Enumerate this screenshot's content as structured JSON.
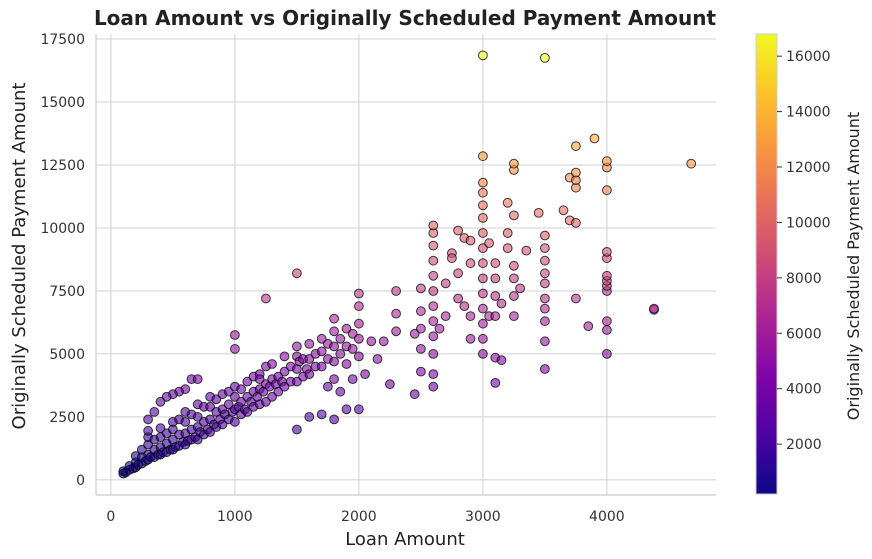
{
  "chart_data": {
    "type": "scatter",
    "title": "Loan Amount vs Originally Scheduled Payment Amount",
    "xlabel": "Loan Amount",
    "ylabel": "Originally Scheduled Payment Amount",
    "xlim": [
      -120,
      4880
    ],
    "ylim": [
      -600,
      17700
    ],
    "xticks": [
      0,
      1000,
      2000,
      3000,
      4000
    ],
    "yticks": [
      0,
      2500,
      5000,
      7500,
      10000,
      12500,
      15000,
      17500
    ],
    "grid": true,
    "colormap": "plasma",
    "marker_edge_color": "#000000",
    "marker_alpha": 0.6,
    "colorbar": {
      "label": "Originally Scheduled Payment Amount",
      "range": [
        200,
        16800
      ],
      "ticks": [
        2000,
        4000,
        6000,
        8000,
        10000,
        12000,
        14000,
        16000
      ]
    },
    "points": [
      [
        100,
        250
      ],
      [
        100,
        350
      ],
      [
        120,
        300
      ],
      [
        150,
        400
      ],
      [
        150,
        550
      ],
      [
        180,
        450
      ],
      [
        200,
        500
      ],
      [
        200,
        700
      ],
      [
        200,
        950
      ],
      [
        220,
        600
      ],
      [
        250,
        650
      ],
      [
        250,
        900
      ],
      [
        250,
        1200
      ],
      [
        280,
        750
      ],
      [
        300,
        800
      ],
      [
        300,
        1000
      ],
      [
        300,
        1400
      ],
      [
        300,
        1700
      ],
      [
        300,
        1950
      ],
      [
        320,
        900
      ],
      [
        350,
        900
      ],
      [
        350,
        1200
      ],
      [
        350,
        1600
      ],
      [
        380,
        1000
      ],
      [
        400,
        1000
      ],
      [
        400,
        1300
      ],
      [
        400,
        1700
      ],
      [
        400,
        2050
      ],
      [
        420,
        1100
      ],
      [
        450,
        1100
      ],
      [
        450,
        1450
      ],
      [
        450,
        1850
      ],
      [
        480,
        1200
      ],
      [
        500,
        1200
      ],
      [
        500,
        1600
      ],
      [
        500,
        2000
      ],
      [
        500,
        2300
      ],
      [
        520,
        1300
      ],
      [
        550,
        1350
      ],
      [
        550,
        1800
      ],
      [
        550,
        2400
      ],
      [
        580,
        1500
      ],
      [
        600,
        1400
      ],
      [
        600,
        1850
      ],
      [
        600,
        2300
      ],
      [
        600,
        2700
      ],
      [
        620,
        1550
      ],
      [
        650,
        1600
      ],
      [
        650,
        2000
      ],
      [
        650,
        2600
      ],
      [
        680,
        1700
      ],
      [
        700,
        1600
      ],
      [
        700,
        2100
      ],
      [
        700,
        2500
      ],
      [
        700,
        3000
      ],
      [
        720,
        1900
      ],
      [
        750,
        1800
      ],
      [
        750,
        2300
      ],
      [
        750,
        2900
      ],
      [
        780,
        2000
      ],
      [
        800,
        1900
      ],
      [
        800,
        2400
      ],
      [
        800,
        2900
      ],
      [
        800,
        3300
      ],
      [
        830,
        2200
      ],
      [
        850,
        2100
      ],
      [
        850,
        2700
      ],
      [
        850,
        3200
      ],
      [
        880,
        2400
      ],
      [
        900,
        2200
      ],
      [
        900,
        2800
      ],
      [
        900,
        3400
      ],
      [
        920,
        2600
      ],
      [
        950,
        2400
      ],
      [
        950,
        3000
      ],
      [
        950,
        3500
      ],
      [
        980,
        2700
      ],
      [
        1000,
        2300
      ],
      [
        1000,
        2800
      ],
      [
        1000,
        3300
      ],
      [
        1000,
        3700
      ],
      [
        1030,
        2900
      ],
      [
        1050,
        2600
      ],
      [
        1050,
        3100
      ],
      [
        1050,
        3600
      ],
      [
        1080,
        2800
      ],
      [
        1100,
        2700
      ],
      [
        1100,
        3300
      ],
      [
        1100,
        3900
      ],
      [
        1130,
        3100
      ],
      [
        1150,
        2900
      ],
      [
        1150,
        3500
      ],
      [
        1150,
        4100
      ],
      [
        1180,
        3300
      ],
      [
        1200,
        3000
      ],
      [
        1200,
        3600
      ],
      [
        1200,
        4200
      ],
      [
        1230,
        3500
      ],
      [
        1250,
        3100
      ],
      [
        1250,
        3800
      ],
      [
        1250,
        4500
      ],
      [
        1280,
        3700
      ],
      [
        1300,
        3300
      ],
      [
        1300,
        4000
      ],
      [
        1300,
        4600
      ],
      [
        1330,
        3800
      ],
      [
        1350,
        3500
      ],
      [
        1350,
        4100
      ],
      [
        1380,
        3900
      ],
      [
        1400,
        3700
      ],
      [
        1400,
        4300
      ],
      [
        1400,
        4900
      ],
      [
        1450,
        3900
      ],
      [
        1450,
        4500
      ],
      [
        1500,
        3900
      ],
      [
        1500,
        4400
      ],
      [
        1500,
        4900
      ],
      [
        1500,
        5300
      ],
      [
        1520,
        4700
      ],
      [
        1550,
        4100
      ],
      [
        1550,
        4800
      ],
      [
        1580,
        4400
      ],
      [
        1600,
        4200
      ],
      [
        1600,
        4800
      ],
      [
        1600,
        5400
      ],
      [
        1650,
        4500
      ],
      [
        1650,
        5000
      ],
      [
        1700,
        4500
      ],
      [
        1700,
        5100
      ],
      [
        1700,
        5600
      ],
      [
        1750,
        4800
      ],
      [
        1750,
        5400
      ],
      [
        1800,
        4000
      ],
      [
        1800,
        4700
      ],
      [
        1800,
        5300
      ],
      [
        1800,
        5900
      ],
      [
        1800,
        6400
      ],
      [
        1850,
        5000
      ],
      [
        1850,
        5600
      ],
      [
        1900,
        4600
      ],
      [
        1900,
        5300
      ],
      [
        1900,
        6000
      ],
      [
        1950,
        5200
      ],
      [
        1950,
        5800
      ],
      [
        2000,
        4900
      ],
      [
        2000,
        5600
      ],
      [
        2000,
        6200
      ],
      [
        2000,
        6900
      ],
      [
        2000,
        7400
      ],
      [
        1200,
        4000
      ],
      [
        1500,
        8200
      ],
      [
        1250,
        7200
      ],
      [
        1000,
        5750
      ],
      [
        1000,
        5200
      ],
      [
        650,
        4000
      ],
      [
        700,
        4000
      ],
      [
        600,
        3600
      ],
      [
        550,
        3500
      ],
      [
        500,
        3400
      ],
      [
        450,
        3300
      ],
      [
        400,
        3100
      ],
      [
        350,
        2700
      ],
      [
        300,
        2400
      ],
      [
        1500,
        2000
      ],
      [
        1600,
        2500
      ],
      [
        1700,
        2600
      ],
      [
        1800,
        2400
      ],
      [
        1900,
        2800
      ],
      [
        2000,
        2800
      ],
      [
        1750,
        3700
      ],
      [
        1850,
        3500
      ],
      [
        1950,
        4000
      ],
      [
        2050,
        4200
      ],
      [
        2100,
        5500
      ],
      [
        2200,
        5500
      ],
      [
        2150,
        4800
      ],
      [
        2250,
        3800
      ],
      [
        2300,
        6600
      ],
      [
        2300,
        5900
      ],
      [
        2300,
        7500
      ],
      [
        2450,
        3400
      ],
      [
        2450,
        5800
      ],
      [
        2500,
        4300
      ],
      [
        2500,
        5200
      ],
      [
        2500,
        6000
      ],
      [
        2500,
        6700
      ],
      [
        2500,
        7600
      ],
      [
        2600,
        3700
      ],
      [
        2600,
        4200
      ],
      [
        2600,
        5000
      ],
      [
        2600,
        5700
      ],
      [
        2600,
        6300
      ],
      [
        2600,
        6900
      ],
      [
        2600,
        7500
      ],
      [
        2600,
        8100
      ],
      [
        2600,
        8700
      ],
      [
        2600,
        9300
      ],
      [
        2600,
        9800
      ],
      [
        2600,
        10100
      ],
      [
        2650,
        6000
      ],
      [
        2700,
        6500
      ],
      [
        2700,
        7800
      ],
      [
        2750,
        9000
      ],
      [
        2750,
        8800
      ],
      [
        2800,
        7200
      ],
      [
        2800,
        9900
      ],
      [
        2800,
        8200
      ],
      [
        2850,
        6900
      ],
      [
        2850,
        9600
      ],
      [
        2900,
        5600
      ],
      [
        2900,
        6500
      ],
      [
        2900,
        8600
      ],
      [
        2900,
        9500
      ],
      [
        3000,
        5000
      ],
      [
        3000,
        5600
      ],
      [
        3000,
        6200
      ],
      [
        3000,
        6800
      ],
      [
        3000,
        7400
      ],
      [
        3000,
        8000
      ],
      [
        3000,
        8600
      ],
      [
        3000,
        9200
      ],
      [
        3000,
        9800
      ],
      [
        3000,
        10400
      ],
      [
        3000,
        10900
      ],
      [
        3000,
        11400
      ],
      [
        3000,
        11800
      ],
      [
        3000,
        12850
      ],
      [
        3000,
        16850
      ],
      [
        3050,
        9400
      ],
      [
        3050,
        6500
      ],
      [
        3100,
        3850
      ],
      [
        3100,
        4850
      ],
      [
        3100,
        6500
      ],
      [
        3100,
        7300
      ],
      [
        3100,
        8000
      ],
      [
        3100,
        8600
      ],
      [
        3150,
        4750
      ],
      [
        3150,
        7000
      ],
      [
        3200,
        9200
      ],
      [
        3200,
        11000
      ],
      [
        3200,
        9800
      ],
      [
        3250,
        6500
      ],
      [
        3250,
        7300
      ],
      [
        3250,
        8000
      ],
      [
        3250,
        8500
      ],
      [
        3250,
        10500
      ],
      [
        3250,
        12300
      ],
      [
        3250,
        12550
      ],
      [
        3300,
        7600
      ],
      [
        3350,
        9100
      ],
      [
        3450,
        10600
      ],
      [
        3500,
        4400
      ],
      [
        3500,
        5500
      ],
      [
        3500,
        6300
      ],
      [
        3500,
        6800
      ],
      [
        3500,
        7200
      ],
      [
        3500,
        7800
      ],
      [
        3500,
        8200
      ],
      [
        3500,
        8700
      ],
      [
        3500,
        9200
      ],
      [
        3500,
        9700
      ],
      [
        3500,
        16750
      ],
      [
        3650,
        10700
      ],
      [
        3700,
        12000
      ],
      [
        3700,
        10300
      ],
      [
        3750,
        7200
      ],
      [
        3750,
        10200
      ],
      [
        3750,
        11600
      ],
      [
        3750,
        11900
      ],
      [
        3750,
        12200
      ],
      [
        3750,
        13250
      ],
      [
        3850,
        6100
      ],
      [
        3900,
        13550
      ],
      [
        4000,
        5000
      ],
      [
        4000,
        5950
      ],
      [
        4000,
        6300
      ],
      [
        4000,
        7500
      ],
      [
        4000,
        7700
      ],
      [
        4000,
        7900
      ],
      [
        4000,
        8100
      ],
      [
        4000,
        8800
      ],
      [
        4000,
        9050
      ],
      [
        4000,
        11500
      ],
      [
        4000,
        12400
      ],
      [
        4000,
        12650
      ],
      [
        4380,
        6750
      ],
      [
        4380,
        6800
      ],
      [
        4680,
        12550
      ]
    ]
  }
}
